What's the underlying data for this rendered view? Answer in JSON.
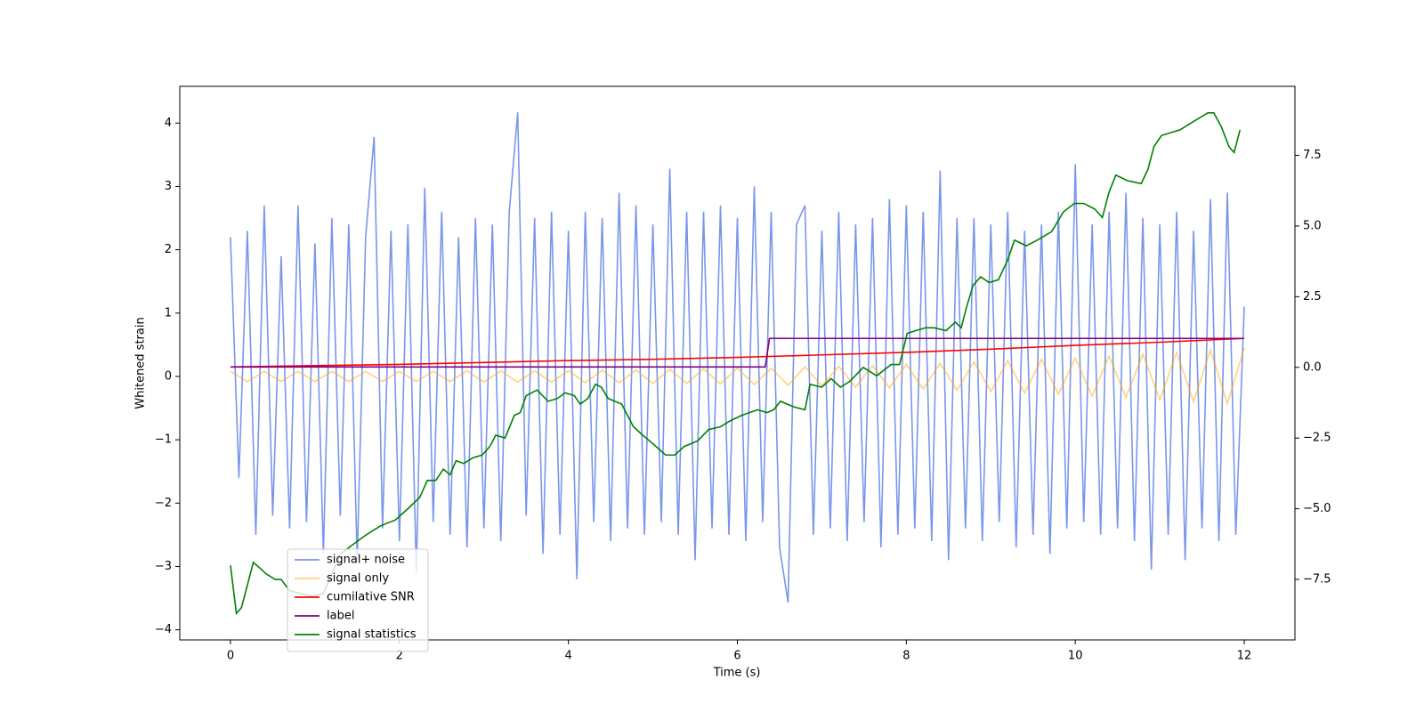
{
  "chart_data": {
    "type": "line",
    "xlabel": "Time (s)",
    "ylabel": "Whitened strain",
    "xlim": [
      -0.6,
      12.6
    ],
    "ylim": [
      -4.16,
      4.58
    ],
    "y2lim": [
      -9.64,
      9.94
    ],
    "xticks": [
      0,
      2,
      4,
      6,
      8,
      10,
      12
    ],
    "yticks": [
      {
        "value": -4,
        "label": "−4"
      },
      {
        "value": -3,
        "label": "−3"
      },
      {
        "value": -2,
        "label": "−2"
      },
      {
        "value": -1,
        "label": "−1"
      },
      0,
      1,
      2,
      3,
      4
    ],
    "y2ticks": [
      {
        "value": -7.5,
        "label": "−7.5"
      },
      {
        "value": -5.0,
        "label": "−5.0"
      },
      {
        "value": -2.5,
        "label": "−2.5"
      },
      {
        "value": 0,
        "label": "0.0"
      },
      2.5,
      {
        "value": 5.0,
        "label": "5.0"
      },
      7.5
    ],
    "series": [
      {
        "name": "signal+ noise",
        "color": "#4169e1",
        "alpha": 0.7,
        "x": [
          0,
          0.1,
          0.2,
          0.3,
          0.4,
          0.5,
          0.6,
          0.7,
          0.8,
          0.9,
          1,
          1.1,
          1.2,
          1.3,
          1.4,
          1.5,
          1.6,
          1.7,
          1.8,
          1.9,
          2,
          2.1,
          2.2,
          2.3,
          2.4,
          2.5,
          2.6,
          2.7,
          2.8,
          2.9,
          3,
          3.1,
          3.2,
          3.3,
          3.4,
          3.5,
          3.6,
          3.7,
          3.8,
          3.9,
          4,
          4.1,
          4.2,
          4.3,
          4.4,
          4.5,
          4.6,
          4.7,
          4.8,
          4.9,
          5,
          5.1,
          5.2,
          5.3,
          5.4,
          5.5,
          5.6,
          5.7,
          5.8,
          5.9,
          6,
          6.1,
          6.2,
          6.3,
          6.4,
          6.5,
          6.6,
          6.7,
          6.8,
          6.9,
          7,
          7.1,
          7.2,
          7.3,
          7.4,
          7.5,
          7.6,
          7.7,
          7.8,
          7.9,
          8,
          8.1,
          8.2,
          8.3,
          8.4,
          8.5,
          8.6,
          8.7,
          8.8,
          8.9,
          9,
          9.1,
          9.2,
          9.3,
          9.4,
          9.5,
          9.6,
          9.7,
          9.8,
          9.9,
          10,
          10.1,
          10.2,
          10.3,
          10.4,
          10.5,
          10.6,
          10.7,
          10.8,
          10.9,
          11,
          11.1,
          11.2,
          11.3,
          11.4,
          11.5,
          11.6,
          11.7,
          11.8,
          11.9,
          12
        ],
        "values": [
          2.2,
          -1.6,
          2.3,
          -2.5,
          2.7,
          -2.2,
          1.9,
          -2.4,
          2.7,
          -2.3,
          2.1,
          -2.8,
          2.5,
          -2.2,
          2.4,
          -2.9,
          2.2,
          3.78,
          -2.4,
          2.3,
          -2.6,
          2.4,
          -3.1,
          2.98,
          -2.3,
          2.6,
          -2.5,
          2.2,
          -2.7,
          2.5,
          -2.4,
          2.4,
          -2.6,
          2.6,
          4.17,
          -2.2,
          2.5,
          -2.8,
          2.6,
          -2.5,
          2.3,
          -3.2,
          2.6,
          -2.3,
          2.5,
          -2.6,
          2.9,
          -2.4,
          2.7,
          -2.5,
          2.4,
          -2.3,
          3.28,
          -2.5,
          2.6,
          -2.9,
          2.6,
          -2.4,
          2.7,
          -2.5,
          2.5,
          -2.6,
          3.0,
          -2.3,
          2.6,
          -2.7,
          -3.57,
          2.4,
          2.7,
          -2.5,
          2.3,
          -2.4,
          2.6,
          -2.6,
          2.4,
          -2.3,
          2.5,
          -2.7,
          2.8,
          -2.5,
          2.7,
          -2.4,
          2.6,
          -2.6,
          3.25,
          -2.9,
          2.5,
          -2.4,
          2.5,
          -2.6,
          2.4,
          -2.3,
          2.6,
          -2.7,
          2.3,
          -2.5,
          2.4,
          -2.8,
          2.6,
          -2.4,
          3.35,
          -2.3,
          2.4,
          -2.5,
          2.6,
          -2.4,
          2.9,
          -2.6,
          2.5,
          -3.05,
          2.4,
          -2.5,
          2.6,
          -2.9,
          2.3,
          -2.4,
          2.8,
          -2.6,
          2.9,
          -2.5,
          1.1
        ]
      },
      {
        "name": "signal only",
        "color": "#ffa500",
        "alpha": 0.5,
        "x": [
          0,
          0.2,
          0.4,
          0.6,
          0.8,
          1,
          1.2,
          1.4,
          1.6,
          1.8,
          2,
          2.2,
          2.4,
          2.6,
          2.8,
          3,
          3.2,
          3.4,
          3.6,
          3.8,
          4,
          4.2,
          4.4,
          4.6,
          4.8,
          5,
          5.2,
          5.4,
          5.6,
          5.8,
          6,
          6.2,
          6.4,
          6.6,
          6.8,
          7,
          7.2,
          7.4,
          7.6,
          7.8,
          8,
          8.2,
          8.4,
          8.6,
          8.8,
          9,
          9.2,
          9.4,
          9.6,
          9.8,
          10,
          10.2,
          10.4,
          10.6,
          10.8,
          11,
          11.2,
          11.4,
          11.6,
          11.8,
          12
        ],
        "values": [
          0.08,
          -0.08,
          0.08,
          -0.08,
          0.08,
          -0.08,
          0.08,
          -0.08,
          0.08,
          -0.08,
          0.08,
          -0.08,
          0.08,
          -0.08,
          0.09,
          -0.09,
          0.09,
          -0.09,
          0.09,
          -0.09,
          0.09,
          -0.1,
          0.1,
          -0.1,
          0.1,
          -0.11,
          0.11,
          -0.11,
          0.12,
          -0.12,
          0.13,
          -0.13,
          0.13,
          -0.14,
          0.15,
          -0.15,
          0.16,
          -0.17,
          0.17,
          -0.18,
          0.19,
          -0.2,
          0.21,
          -0.22,
          0.23,
          -0.24,
          0.25,
          -0.26,
          0.27,
          -0.28,
          0.29,
          -0.31,
          0.32,
          -0.33,
          0.35,
          -0.37,
          0.38,
          -0.4,
          0.42,
          -0.43,
          0.45
        ]
      },
      {
        "name": "cumilative SNR",
        "color": "#ff0000",
        "alpha": 1,
        "x": [
          0,
          1,
          2,
          3,
          4,
          5,
          6,
          7,
          8,
          9,
          10,
          11,
          12
        ],
        "values": [
          0.15,
          0.17,
          0.19,
          0.22,
          0.25,
          0.27,
          0.3,
          0.34,
          0.38,
          0.43,
          0.49,
          0.54,
          0.6
        ]
      },
      {
        "name": "label",
        "color": "#800080",
        "alpha": 1,
        "x": [
          0,
          6.33,
          6.38,
          12
        ],
        "values": [
          0.15,
          0.15,
          0.6,
          0.6
        ]
      },
      {
        "name": "signal statistics",
        "color": "#008000",
        "alpha": 1,
        "axis": "y2",
        "x": [
          0,
          0.07,
          0.13,
          0.2,
          0.27,
          0.35,
          0.42,
          0.53,
          0.6,
          0.7,
          0.97,
          1.1,
          1.3,
          1.57,
          1.67,
          1.78,
          1.95,
          2.1,
          2.24,
          2.33,
          2.43,
          2.52,
          2.6,
          2.67,
          2.76,
          2.87,
          2.98,
          3.07,
          3.14,
          3.25,
          3.36,
          3.43,
          3.5,
          3.63,
          3.76,
          3.87,
          3.96,
          4.07,
          4.14,
          4.23,
          4.32,
          4.39,
          4.47,
          4.63,
          4.77,
          4.88,
          5.0,
          5.15,
          5.26,
          5.37,
          5.53,
          5.66,
          5.8,
          5.91,
          6.05,
          6.24,
          6.35,
          6.43,
          6.51,
          6.67,
          6.8,
          6.86,
          7.0,
          7.11,
          7.22,
          7.33,
          7.49,
          7.65,
          7.82,
          7.92,
          8.01,
          8.11,
          8.23,
          8.33,
          8.47,
          8.58,
          8.65,
          8.71,
          8.79,
          8.88,
          8.98,
          9.09,
          9.2,
          9.28,
          9.42,
          9.55,
          9.72,
          9.86,
          9.99,
          10.1,
          10.23,
          10.32,
          10.4,
          10.48,
          10.62,
          10.78,
          10.86,
          10.93,
          11.02,
          11.24,
          11.4,
          11.57,
          11.64,
          11.73,
          11.82,
          11.88,
          11.95
        ],
        "values": [
          -7.0,
          -8.7,
          -8.5,
          -7.7,
          -6.9,
          -7.1,
          -7.3,
          -7.5,
          -7.5,
          -7.9,
          -8.1,
          -8.0,
          -6.6,
          -6.0,
          -5.8,
          -5.6,
          -5.4,
          -5.0,
          -4.6,
          -4.0,
          -4.0,
          -3.6,
          -3.8,
          -3.3,
          -3.4,
          -3.2,
          -3.1,
          -2.8,
          -2.4,
          -2.5,
          -1.7,
          -1.6,
          -1.0,
          -0.8,
          -1.2,
          -1.1,
          -0.9,
          -1.0,
          -1.3,
          -1.1,
          -0.6,
          -0.7,
          -1.1,
          -1.3,
          -2.1,
          -2.4,
          -2.7,
          -3.1,
          -3.1,
          -2.8,
          -2.6,
          -2.2,
          -2.1,
          -1.9,
          -1.7,
          -1.5,
          -1.6,
          -1.5,
          -1.2,
          -1.4,
          -1.5,
          -0.6,
          -0.7,
          -0.4,
          -0.7,
          -0.5,
          0.0,
          -0.3,
          0.1,
          0.1,
          1.2,
          1.3,
          1.4,
          1.4,
          1.3,
          1.6,
          1.4,
          2.1,
          2.9,
          3.2,
          3.0,
          3.1,
          3.8,
          4.5,
          4.3,
          4.5,
          4.8,
          5.5,
          5.8,
          5.8,
          5.6,
          5.3,
          6.2,
          6.8,
          6.6,
          6.5,
          7.0,
          7.8,
          8.2,
          8.4,
          8.7,
          9.0,
          9.0,
          8.5,
          7.8,
          7.6,
          8.4
        ]
      }
    ]
  }
}
